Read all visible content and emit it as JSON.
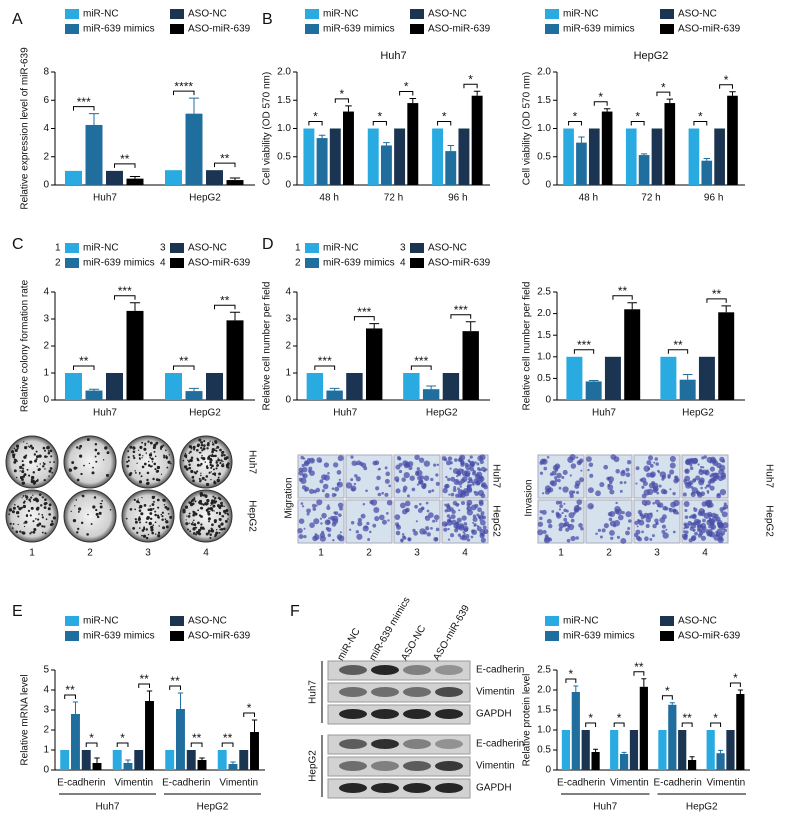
{
  "figure": {
    "panel_labels": [
      "A",
      "B",
      "C",
      "D",
      "E",
      "F"
    ],
    "colony_assay": {
      "rows": [
        "Huh7",
        "HepG2"
      ],
      "columns": [
        "1",
        "2",
        "3",
        "4"
      ]
    },
    "migration_assay": {
      "label": "Migration",
      "rows": [
        "Huh7",
        "HepG2"
      ],
      "columns": [
        "1",
        "2",
        "3",
        "4"
      ]
    },
    "invasion_assay": {
      "label": "Invasion",
      "rows": [
        "Huh7",
        "HepG2"
      ],
      "columns": [
        "1",
        "2",
        "3",
        "4"
      ]
    },
    "western_blot": {
      "lanes": [
        "miR-NC",
        "miR-639 mimics",
        "ASO-NC",
        "ASO-miR-639"
      ],
      "cell_lines": [
        "Huh7",
        "HepG2"
      ],
      "proteins": [
        "E-cadherin",
        "Vimentin",
        "GAPDH"
      ]
    }
  },
  "chart_data": [
    {
      "type": "bar",
      "ylabel": "Relative expression level of miR-639",
      "legend": "top",
      "categories": [
        "Huh7",
        "HepG2"
      ],
      "series": [
        {
          "name": "miR-NC",
          "color": "#29abe2",
          "values": [
            1,
            1.05
          ]
        },
        {
          "name": "miR-639 mimics",
          "color": "#1f6e9e",
          "values": [
            4.25,
            5.05
          ],
          "errors": [
            0.8,
            1.1
          ]
        },
        {
          "name": "ASO-NC",
          "color": "#1b3452",
          "values": [
            1,
            1.05
          ]
        },
        {
          "name": "ASO-miR-639",
          "color": "#000000",
          "values": [
            0.45,
            0.35
          ],
          "errors": [
            0.15,
            0.15
          ]
        }
      ],
      "ylim": [
        0,
        8
      ],
      "yticks": [
        0,
        2,
        4,
        6,
        8
      ],
      "significance": [
        [
          "***",
          "**"
        ],
        [
          "****",
          "**"
        ]
      ]
    },
    {
      "type": "bar",
      "title": "Huh7",
      "ylabel": "Cell viability (OD 570 nm)",
      "legend": "top",
      "categories": [
        "48 h",
        "72 h",
        "96 h"
      ],
      "series": [
        {
          "name": "miR-NC",
          "color": "#29abe2",
          "values": [
            1,
            1,
            1
          ]
        },
        {
          "name": "miR-639 mimics",
          "color": "#1f6e9e",
          "values": [
            0.83,
            0.7,
            0.6
          ],
          "errors": [
            0.05,
            0.05,
            0.1
          ]
        },
        {
          "name": "ASO-NC",
          "color": "#1b3452",
          "values": [
            1,
            1,
            1
          ]
        },
        {
          "name": "ASO-miR-639",
          "color": "#000000",
          "values": [
            1.3,
            1.45,
            1.58
          ],
          "errors": [
            0.1,
            0.08,
            0.08
          ]
        }
      ],
      "ylim": [
        0,
        2
      ],
      "yticks": [
        0,
        0.5,
        {
          "value": 1,
          "label": "1.0"
        },
        1.5,
        {
          "value": 2,
          "label": "2.0"
        }
      ],
      "significance": [
        [
          "*",
          "*"
        ],
        [
          "*",
          "*"
        ],
        [
          "*",
          "*"
        ]
      ]
    },
    {
      "type": "bar",
      "title": "HepG2",
      "ylabel": "Cell viability (OD 570 nm)",
      "legend": "top",
      "categories": [
        "48 h",
        "72 h",
        "96 h"
      ],
      "series": [
        {
          "name": "miR-NC",
          "color": "#29abe2",
          "values": [
            1,
            1,
            1
          ]
        },
        {
          "name": "miR-639 mimics",
          "color": "#1f6e9e",
          "values": [
            0.75,
            0.53,
            0.43
          ],
          "errors": [
            0.1,
            0.02,
            0.04
          ]
        },
        {
          "name": "ASO-NC",
          "color": "#1b3452",
          "values": [
            1,
            1,
            1
          ]
        },
        {
          "name": "ASO-miR-639",
          "color": "#000000",
          "values": [
            1.3,
            1.45,
            1.58
          ],
          "errors": [
            0.05,
            0.07,
            0.07
          ]
        }
      ],
      "ylim": [
        0,
        2
      ],
      "yticks": [
        0,
        0.5,
        {
          "value": 1,
          "label": "1.0"
        },
        1.5,
        {
          "value": 2,
          "label": "2.0"
        }
      ],
      "significance": [
        [
          "*",
          "*"
        ],
        [
          "*",
          "*"
        ],
        [
          "*",
          "*"
        ]
      ]
    },
    {
      "type": "bar",
      "ylabel": "Relative colony formation rate",
      "legend": "top",
      "legend_numbers": [
        "1",
        "2",
        "3",
        "4"
      ],
      "categories": [
        "Huh7",
        "HepG2"
      ],
      "series": [
        {
          "name": "miR-NC",
          "color": "#29abe2",
          "values": [
            1,
            1
          ]
        },
        {
          "name": "miR-639 mimics",
          "color": "#1f6e9e",
          "values": [
            0.35,
            0.33
          ],
          "errors": [
            0.05,
            0.1
          ]
        },
        {
          "name": "ASO-NC",
          "color": "#1b3452",
          "values": [
            1,
            1
          ]
        },
        {
          "name": "ASO-miR-639",
          "color": "#000000",
          "values": [
            3.3,
            2.95
          ],
          "errors": [
            0.3,
            0.3
          ]
        }
      ],
      "ylim": [
        0,
        4
      ],
      "yticks": [
        0,
        1,
        2,
        3,
        4
      ],
      "significance": [
        [
          "**",
          "***"
        ],
        [
          "**",
          "**"
        ]
      ]
    },
    {
      "type": "bar",
      "ylabel": "Relative cell number per field",
      "legend": "top",
      "legend_numbers": [
        "1",
        "2",
        "3",
        "4"
      ],
      "categories": [
        "Huh7",
        "HepG2"
      ],
      "series": [
        {
          "name": "miR-NC",
          "color": "#29abe2",
          "values": [
            1,
            1
          ]
        },
        {
          "name": "miR-639 mimics",
          "color": "#1f6e9e",
          "values": [
            0.35,
            0.4
          ],
          "errors": [
            0.08,
            0.12
          ]
        },
        {
          "name": "ASO-NC",
          "color": "#1b3452",
          "values": [
            1,
            1
          ]
        },
        {
          "name": "ASO-miR-639",
          "color": "#000000",
          "values": [
            2.65,
            2.55
          ],
          "errors": [
            0.18,
            0.35
          ]
        }
      ],
      "ylim": [
        0,
        4
      ],
      "yticks": [
        0,
        1,
        2,
        3,
        4
      ],
      "significance": [
        [
          "***",
          "***"
        ],
        [
          "***",
          "***"
        ]
      ]
    },
    {
      "type": "bar",
      "ylabel": "Relative cell number per field",
      "categories": [
        "Huh7",
        "HepG2"
      ],
      "series": [
        {
          "name": "miR-NC",
          "color": "#29abe2",
          "values": [
            1,
            1
          ]
        },
        {
          "name": "miR-639 mimics",
          "color": "#1f6e9e",
          "values": [
            0.43,
            0.47
          ],
          "errors": [
            0.02,
            0.12
          ]
        },
        {
          "name": "ASO-NC",
          "color": "#1b3452",
          "values": [
            1,
            1
          ]
        },
        {
          "name": "ASO-miR-639",
          "color": "#000000",
          "values": [
            2.1,
            2.03
          ],
          "errors": [
            0.15,
            0.15
          ]
        }
      ],
      "ylim": [
        0,
        2.5
      ],
      "yticks": [
        0,
        0.5,
        {
          "value": 1,
          "label": "1.0"
        },
        1.5,
        {
          "value": 2,
          "label": "2.0"
        },
        2.5
      ],
      "significance": [
        [
          "***",
          "**"
        ],
        [
          "**",
          "**"
        ]
      ]
    },
    {
      "type": "bar",
      "ylabel": "Relative mRNA level",
      "legend": "top",
      "categories": [
        "E-cadherin",
        "Vimentin",
        "E-cadherin",
        "Vimentin"
      ],
      "groups": [
        "Huh7",
        "HepG2"
      ],
      "series": [
        {
          "name": "miR-NC",
          "color": "#29abe2",
          "values": [
            1,
            1,
            1,
            1
          ]
        },
        {
          "name": "miR-639 mimics",
          "color": "#1f6e9e",
          "values": [
            2.8,
            0.35,
            3.05,
            0.3
          ],
          "errors": [
            0.6,
            0.15,
            0.8,
            0.1
          ]
        },
        {
          "name": "ASO-NC",
          "color": "#1b3452",
          "values": [
            1,
            1,
            1,
            1
          ]
        },
        {
          "name": "ASO-miR-639",
          "color": "#000000",
          "values": [
            0.35,
            3.45,
            0.5,
            1.9
          ],
          "errors": [
            0.25,
            0.5,
            0.1,
            0.6
          ]
        }
      ],
      "ylim": [
        0,
        5
      ],
      "yticks": [
        0,
        1,
        2,
        3,
        4,
        5
      ],
      "significance": [
        [
          "**",
          "*"
        ],
        [
          "*",
          "**"
        ],
        [
          "**",
          "**"
        ],
        [
          "**",
          "*"
        ]
      ]
    },
    {
      "type": "bar",
      "ylabel": "Relative protein level",
      "legend": "top",
      "categories": [
        "E-cadherin",
        "Vimentin",
        "E-cadherin",
        "Vimentin"
      ],
      "groups": [
        "Huh7",
        "HepG2"
      ],
      "series": [
        {
          "name": "miR-NC",
          "color": "#29abe2",
          "values": [
            1,
            1,
            1,
            1
          ]
        },
        {
          "name": "miR-639 mimics",
          "color": "#1f6e9e",
          "values": [
            1.95,
            0.4,
            1.63,
            0.42
          ],
          "errors": [
            0.15,
            0.04,
            0.05,
            0.07
          ]
        },
        {
          "name": "ASO-NC",
          "color": "#1b3452",
          "values": [
            1,
            1,
            1,
            1
          ]
        },
        {
          "name": "ASO-miR-639",
          "color": "#000000",
          "values": [
            0.45,
            2.08,
            0.25,
            1.9
          ],
          "errors": [
            0.07,
            0.2,
            0.08,
            0.1
          ]
        }
      ],
      "ylim": [
        0,
        2.5
      ],
      "yticks": [
        0,
        0.5,
        {
          "value": 1,
          "label": "1.0"
        },
        1.5,
        {
          "value": 2,
          "label": "2.0"
        },
        2.5
      ],
      "significance": [
        [
          "*",
          "*"
        ],
        [
          "*",
          "**"
        ],
        [
          "*",
          "**"
        ],
        [
          "*",
          "*"
        ]
      ]
    }
  ]
}
